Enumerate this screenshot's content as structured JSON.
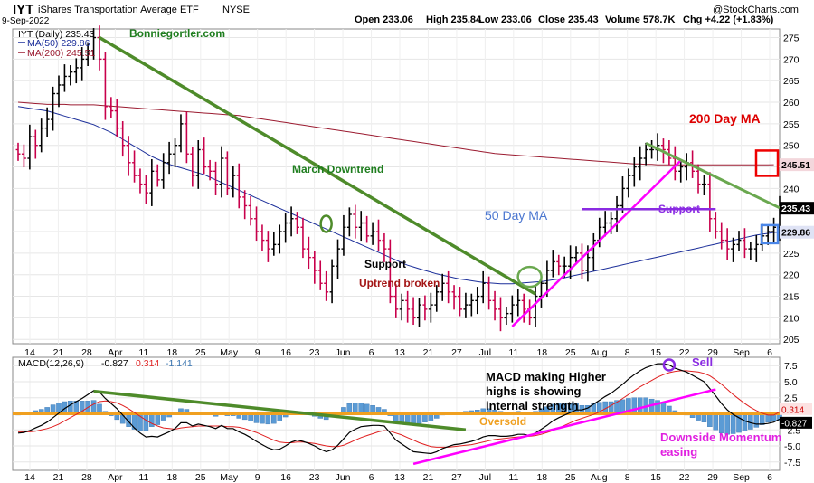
{
  "header": {
    "ticker": "IYT",
    "name": "iShares Transportation Average ETF",
    "exchange": "NYSE",
    "date": "9-Sep-2022",
    "credit": "@StockCharts.com",
    "quote": {
      "open": "Open 233.06",
      "high": "High 235.84",
      "low": "Low 233.06",
      "close": "Close 235.43",
      "volume": "Volume 578.7K",
      "chg": "Chg +4.22 (+1.83%)"
    },
    "colors": {
      "red": "#cc0000",
      "green": "#1e7d1e"
    }
  },
  "chart_data": [
    {
      "type": "ohlc",
      "legend": {
        "price": "IYT (Daily) 235.43",
        "ma50": "MA(50) 229.86",
        "ma200": "MA(200) 245.51"
      },
      "watermark": "Bonniegortler.com",
      "ylim": [
        204,
        277
      ],
      "yticks": [
        205,
        210,
        215,
        220,
        225,
        230,
        235,
        240,
        245,
        250,
        255,
        260,
        265,
        270,
        275
      ],
      "x_tick_labels": [
        "14",
        "21",
        "28",
        "Apr",
        "11",
        "18",
        "25",
        "May",
        "9",
        "16",
        "23",
        "Jun",
        "6",
        "13",
        "21",
        "27",
        "Jul",
        "11",
        "18",
        "25",
        "Aug",
        "8",
        "15",
        "22",
        "29",
        "Sep",
        "6"
      ],
      "closes": [
        248,
        247,
        252,
        250,
        254,
        256,
        262,
        264,
        266,
        267,
        268,
        270,
        272,
        275,
        270,
        259,
        258,
        254,
        250,
        246,
        243,
        241,
        239,
        244,
        242,
        246,
        248,
        250,
        255,
        248,
        243,
        249,
        245,
        244,
        241,
        247,
        240,
        243,
        238,
        236,
        233,
        230,
        228,
        226,
        227,
        230,
        232,
        233,
        231,
        226,
        224,
        221,
        218,
        216,
        222,
        226,
        231,
        234,
        231,
        232,
        229,
        230,
        228,
        226,
        215,
        212,
        214,
        212,
        210,
        213,
        212,
        213,
        216,
        218,
        216,
        215,
        212,
        213,
        214,
        215,
        218,
        214,
        212,
        210,
        211,
        213,
        214,
        212,
        210,
        215,
        218,
        221,
        223,
        222,
        222,
        224,
        225,
        221,
        224,
        228,
        231,
        232,
        233,
        236,
        240,
        243,
        245,
        247,
        249,
        249,
        250,
        249,
        247,
        244,
        245,
        246,
        244,
        241,
        241,
        233,
        230,
        228,
        226,
        227,
        228,
        226,
        226,
        227,
        229,
        230,
        231,
        235.43
      ],
      "ma50": [
        259,
        258.8,
        258.6,
        258.4,
        258.2,
        258,
        257.6,
        257.2,
        256.8,
        256.4,
        256,
        255.6,
        255.2,
        254.8,
        254.2,
        253.6,
        253,
        252.2,
        251.4,
        250.6,
        249.8,
        249,
        248.2,
        247.4,
        246.8,
        246.2,
        245.6,
        245.2,
        244.8,
        244.4,
        244,
        243.6,
        243.2,
        242.6,
        242,
        241.4,
        240.8,
        240.2,
        239.6,
        239,
        238.4,
        237.8,
        237.2,
        236.6,
        236,
        235.4,
        234.8,
        234.2,
        233.6,
        233,
        232.4,
        231.8,
        231.2,
        230.6,
        230,
        229.4,
        228.8,
        228.2,
        227.6,
        227,
        226.4,
        225.8,
        225.2,
        224.6,
        224,
        223.4,
        222.8,
        222.2,
        221.8,
        221.4,
        221,
        220.6,
        220.2,
        219.9,
        219.6,
        219.3,
        219,
        218.8,
        218.6,
        218.4,
        218.2,
        218.1,
        218,
        217.9,
        217.9,
        217.9,
        218,
        218.1,
        218.2,
        218.3,
        218.4,
        218.6,
        218.8,
        219,
        219.3,
        219.6,
        219.9,
        220.2,
        220.5,
        220.8,
        221.1,
        221.4,
        221.7,
        222,
        222.3,
        222.6,
        222.9,
        223.2,
        223.5,
        223.8,
        224.1,
        224.4,
        224.7,
        225,
        225.3,
        225.6,
        225.9,
        226.2,
        226.5,
        226.8,
        227.1,
        227.4,
        227.7,
        228,
        228.3,
        228.6,
        228.9,
        229.2,
        229.4,
        229.6,
        229.8,
        229.86
      ],
      "ma200": [
        260,
        259.9,
        259.8,
        259.7,
        259.6,
        259.5,
        259.5,
        259.5,
        259.5,
        259.4,
        259.4,
        259.4,
        259.4,
        259.4,
        259.3,
        259.2,
        259.1,
        259,
        258.9,
        258.8,
        258.7,
        258.6,
        258.5,
        258.4,
        258.3,
        258.2,
        258.1,
        258,
        257.9,
        257.8,
        257.7,
        257.6,
        257.5,
        257.4,
        257.3,
        257.2,
        257.1,
        257,
        256.9,
        256.7,
        256.5,
        256.3,
        256.1,
        255.9,
        255.7,
        255.5,
        255.3,
        255.1,
        254.9,
        254.7,
        254.5,
        254.3,
        254.1,
        253.9,
        253.7,
        253.5,
        253.3,
        253.1,
        252.9,
        252.7,
        252.5,
        252.3,
        252.1,
        251.9,
        251.7,
        251.5,
        251.3,
        251.1,
        250.9,
        250.7,
        250.5,
        250.3,
        250.1,
        249.9,
        249.7,
        249.5,
        249.3,
        249.1,
        248.9,
        248.7,
        248.5,
        248.3,
        248.1,
        248,
        247.9,
        247.8,
        247.7,
        247.6,
        247.5,
        247.4,
        247.3,
        247.2,
        247.1,
        247,
        246.9,
        246.8,
        246.7,
        246.6,
        246.5,
        246.4,
        246.3,
        246.2,
        246.1,
        246,
        245.9,
        245.8,
        245.7,
        245.7,
        245.6,
        245.6,
        245.5,
        245.5,
        245.5,
        245.5,
        245.5,
        245.5,
        245.5,
        245.5,
        245.5,
        245.5,
        245.5,
        245.5,
        245.5,
        245.5,
        245.5,
        245.5,
        245.5,
        245.5,
        245.5,
        245.5,
        245.51
      ],
      "last_price_label": "235.43",
      "ma200_label": "245.51",
      "ma50_label": "229.86",
      "annotations": {
        "march_downtrend": "March Downtrend",
        "ma50_text": "50 Day MA",
        "ma200_text": "200 Day MA",
        "support_left": "Support",
        "uptrend_broken": "Uptrend broken",
        "support_right": "Support"
      }
    },
    {
      "type": "macd",
      "legend": {
        "label": "MACD(12,26,9)",
        "macd": "-0.827",
        "signal": "0.314",
        "hist": "-1.141"
      },
      "ylim": [
        -8.8,
        8.8
      ],
      "yticks": [
        -7.5,
        -5.0,
        -2.5,
        2.5,
        5.0,
        7.5
      ],
      "ytick_labels": [
        "-7.5",
        "-5.0",
        "-2.5",
        "2.5",
        "5.0",
        "7.5"
      ],
      "macd_label": "-0.827",
      "signal_label": "0.314",
      "macd": [
        -3,
        -2.9,
        -2.6,
        -2.2,
        -1.8,
        -1.3,
        -0.6,
        0.1,
        0.8,
        1.4,
        1.9,
        2.4,
        3,
        3.6,
        3.4,
        2.4,
        1.6,
        0.8,
        -0.2,
        -1.2,
        -2.2,
        -3,
        -3.6,
        -3.5,
        -3.6,
        -3.2,
        -2.8,
        -2.3,
        -1.4,
        -1.4,
        -1.9,
        -1.6,
        -1.8,
        -2,
        -2.3,
        -1.8,
        -2.3,
        -2.3,
        -2.8,
        -3.2,
        -3.7,
        -4.3,
        -4.8,
        -5.3,
        -5.6,
        -5.5,
        -5,
        -4.4,
        -4.1,
        -4.3,
        -4.6,
        -5,
        -5.5,
        -5.9,
        -5.6,
        -4.9,
        -3.9,
        -2.9,
        -2.4,
        -2,
        -1.9,
        -1.8,
        -1.8,
        -1.9,
        -3,
        -4.1,
        -4.7,
        -5.3,
        -5.9,
        -6,
        -6.1,
        -6.2,
        -5.9,
        -5.4,
        -5.1,
        -4.8,
        -4.7,
        -4.5,
        -4.3,
        -4,
        -3.6,
        -3.4,
        -3.4,
        -3.5,
        -3.5,
        -3.4,
        -3.2,
        -3.2,
        -3.4,
        -3,
        -2.4,
        -1.8,
        -1.1,
        -0.6,
        -0.2,
        0.2,
        0.6,
        0.6,
        0.9,
        1.5,
        2.1,
        2.7,
        3.2,
        3.9,
        4.6,
        5.4,
        6.1,
        6.7,
        7.2,
        7.5,
        7.8,
        7.8,
        7.6,
        7.1,
        6.8,
        6.5,
        6,
        5.5,
        5,
        3.9,
        2.8,
        1.6,
        0.6,
        -0.1,
        -0.6,
        -1.1,
        -1.4,
        -1.6,
        -1.6,
        -1.5,
        -1.3,
        -0.827
      ],
      "signal": [
        -2.8,
        -2.8,
        -2.8,
        -2.7,
        -2.5,
        -2.3,
        -2,
        -1.6,
        -1.1,
        -0.6,
        -0.1,
        0.4,
        1,
        1.5,
        1.9,
        2,
        1.9,
        1.7,
        1.3,
        0.8,
        0.2,
        -0.4,
        -1,
        -1.5,
        -1.9,
        -2.2,
        -2.3,
        -2.4,
        -2.2,
        -2.1,
        -2,
        -1.9,
        -1.9,
        -1.9,
        -1.9,
        -1.9,
        -2,
        -2,
        -2.1,
        -2.3,
        -2.6,
        -2.9,
        -3.3,
        -3.7,
        -4.1,
        -4.4,
        -4.5,
        -4.5,
        -4.4,
        -4.4,
        -4.5,
        -4.6,
        -4.8,
        -5,
        -5.1,
        -5.1,
        -4.9,
        -4.5,
        -4.1,
        -3.7,
        -3.4,
        -3.1,
        -2.8,
        -2.6,
        -2.7,
        -3,
        -3.3,
        -3.7,
        -4.1,
        -4.5,
        -4.8,
        -5.1,
        -5.2,
        -5.2,
        -5.2,
        -5.1,
        -5,
        -4.9,
        -4.8,
        -4.6,
        -4.4,
        -4.2,
        -4,
        -3.9,
        -3.8,
        -3.7,
        -3.6,
        -3.5,
        -3.5,
        -3.4,
        -3.2,
        -2.9,
        -2.6,
        -2.2,
        -1.8,
        -1.4,
        -1,
        -0.7,
        -0.4,
        -0.1,
        0.3,
        0.8,
        1.3,
        1.8,
        2.4,
        3,
        3.6,
        4.2,
        4.7,
        5.2,
        5.7,
        6.1,
        6.4,
        6.6,
        6.7,
        6.7,
        6.6,
        6.5,
        6.3,
        5.9,
        5.3,
        4.6,
        3.8,
        3,
        2.3,
        1.6,
        1,
        0.5,
        0.1,
        -0.2,
        -0.2,
        0.314
      ],
      "annotations": {
        "oversold": "Oversold",
        "higher_highs": "MACD making Higher highs is showing internal strength",
        "sell": "Sell",
        "downside_momentum": "Downside Momentum easing"
      }
    }
  ]
}
